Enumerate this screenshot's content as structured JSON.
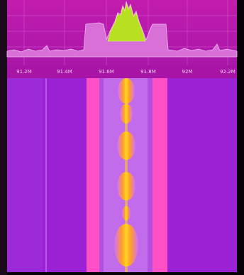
{
  "frequency_axis": {
    "labels": [
      "91.2M",
      "91.4M",
      "91.6M",
      "91.8M",
      "92M",
      "92.2M"
    ]
  }
}
